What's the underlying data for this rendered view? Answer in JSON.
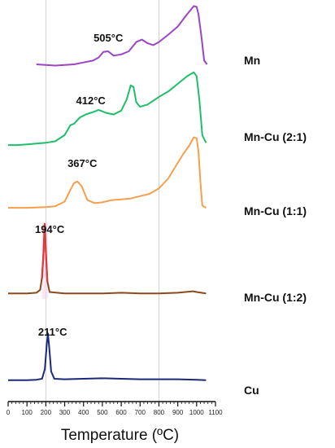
{
  "chart_data": {
    "type": "line",
    "xlabel": "Temperature (ºC)",
    "xlim": [
      0,
      1100
    ],
    "xticks": [
      0,
      100,
      200,
      300,
      400,
      500,
      600,
      700,
      800,
      900,
      1000,
      1100
    ],
    "tick_labels": [
      "0",
      "100",
      "200",
      "300",
      "400",
      "500",
      "600",
      "700",
      "800",
      "900",
      "1000",
      "1100"
    ],
    "vertical_reference_lines": [
      200,
      800
    ],
    "legend_placement": "right",
    "series": [
      {
        "name": "Mn",
        "color": "#9b45c4",
        "peak_label": "505°C",
        "peak_label_x": 505,
        "points": [
          [
            150,
            0.04
          ],
          [
            200,
            0.03
          ],
          [
            250,
            0.02
          ],
          [
            300,
            0.03
          ],
          [
            350,
            0.04
          ],
          [
            400,
            0.07
          ],
          [
            450,
            0.1
          ],
          [
            480,
            0.15
          ],
          [
            505,
            0.24
          ],
          [
            530,
            0.25
          ],
          [
            560,
            0.18
          ],
          [
            600,
            0.2
          ],
          [
            640,
            0.25
          ],
          [
            680,
            0.4
          ],
          [
            710,
            0.44
          ],
          [
            740,
            0.38
          ],
          [
            770,
            0.35
          ],
          [
            800,
            0.4
          ],
          [
            850,
            0.52
          ],
          [
            900,
            0.65
          ],
          [
            950,
            0.85
          ],
          [
            985,
            0.98
          ],
          [
            1000,
            0.97
          ],
          [
            1010,
            0.85
          ],
          [
            1025,
            0.5
          ],
          [
            1040,
            0.1
          ],
          [
            1055,
            0.04
          ]
        ]
      },
      {
        "name": "Mn-Cu (2:1)",
        "color": "#1fbf6a",
        "peak_label": "412°C",
        "peak_label_x": 412,
        "points": [
          [
            0,
            0.02
          ],
          [
            50,
            0.02
          ],
          [
            100,
            0.03
          ],
          [
            150,
            0.04
          ],
          [
            200,
            0.05
          ],
          [
            250,
            0.07
          ],
          [
            300,
            0.15
          ],
          [
            330,
            0.28
          ],
          [
            350,
            0.3
          ],
          [
            380,
            0.38
          ],
          [
            412,
            0.42
          ],
          [
            450,
            0.45
          ],
          [
            480,
            0.48
          ],
          [
            520,
            0.44
          ],
          [
            560,
            0.42
          ],
          [
            600,
            0.47
          ],
          [
            630,
            0.62
          ],
          [
            650,
            0.8
          ],
          [
            665,
            0.78
          ],
          [
            680,
            0.58
          ],
          [
            700,
            0.52
          ],
          [
            740,
            0.55
          ],
          [
            800,
            0.65
          ],
          [
            850,
            0.72
          ],
          [
            900,
            0.82
          ],
          [
            950,
            0.92
          ],
          [
            985,
            0.97
          ],
          [
            1000,
            0.92
          ],
          [
            1015,
            0.6
          ],
          [
            1030,
            0.15
          ],
          [
            1050,
            0.05
          ]
        ]
      },
      {
        "name": "Mn-Cu (1:1)",
        "color": "#f5a04c",
        "peak_label": "367°C",
        "peak_label_x": 367,
        "points": [
          [
            0,
            0.02
          ],
          [
            100,
            0.02
          ],
          [
            200,
            0.03
          ],
          [
            250,
            0.04
          ],
          [
            300,
            0.1
          ],
          [
            330,
            0.25
          ],
          [
            350,
            0.34
          ],
          [
            367,
            0.36
          ],
          [
            390,
            0.3
          ],
          [
            420,
            0.12
          ],
          [
            460,
            0.08
          ],
          [
            500,
            0.09
          ],
          [
            550,
            0.12
          ],
          [
            600,
            0.13
          ],
          [
            650,
            0.14
          ],
          [
            700,
            0.17
          ],
          [
            750,
            0.2
          ],
          [
            800,
            0.27
          ],
          [
            850,
            0.4
          ],
          [
            900,
            0.6
          ],
          [
            930,
            0.72
          ],
          [
            960,
            0.82
          ],
          [
            985,
            0.93
          ],
          [
            1000,
            0.92
          ],
          [
            1010,
            0.75
          ],
          [
            1020,
            0.35
          ],
          [
            1030,
            0.05
          ],
          [
            1050,
            0.02
          ]
        ]
      },
      {
        "name": "Mn-Cu (1:2)",
        "color": "#8b4a1e",
        "peak_color": "#e03a3a",
        "peak_label": "194°C",
        "peak_label_x": 194,
        "points": [
          [
            0,
            0.03
          ],
          [
            100,
            0.03
          ],
          [
            150,
            0.04
          ],
          [
            170,
            0.08
          ],
          [
            180,
            0.25
          ],
          [
            188,
            0.6
          ],
          [
            194,
            0.98
          ],
          [
            200,
            0.6
          ],
          [
            208,
            0.2
          ],
          [
            220,
            0.05
          ],
          [
            260,
            0.04
          ],
          [
            300,
            0.03
          ],
          [
            400,
            0.03
          ],
          [
            500,
            0.03
          ],
          [
            600,
            0.04
          ],
          [
            700,
            0.03
          ],
          [
            800,
            0.03
          ],
          [
            900,
            0.04
          ],
          [
            980,
            0.06
          ],
          [
            1000,
            0.05
          ],
          [
            1050,
            0.03
          ]
        ]
      },
      {
        "name": "Cu",
        "color": "#1a2a78",
        "peak_label": "211°C",
        "peak_label_x": 211,
        "points": [
          [
            0,
            0.02
          ],
          [
            100,
            0.02
          ],
          [
            150,
            0.03
          ],
          [
            180,
            0.05
          ],
          [
            195,
            0.25
          ],
          [
            205,
            0.75
          ],
          [
            211,
            0.98
          ],
          [
            218,
            0.7
          ],
          [
            228,
            0.2
          ],
          [
            245,
            0.05
          ],
          [
            300,
            0.04
          ],
          [
            400,
            0.05
          ],
          [
            500,
            0.06
          ],
          [
            600,
            0.05
          ],
          [
            700,
            0.04
          ],
          [
            800,
            0.04
          ],
          [
            900,
            0.04
          ],
          [
            1000,
            0.03
          ],
          [
            1050,
            0.02
          ]
        ]
      }
    ]
  }
}
